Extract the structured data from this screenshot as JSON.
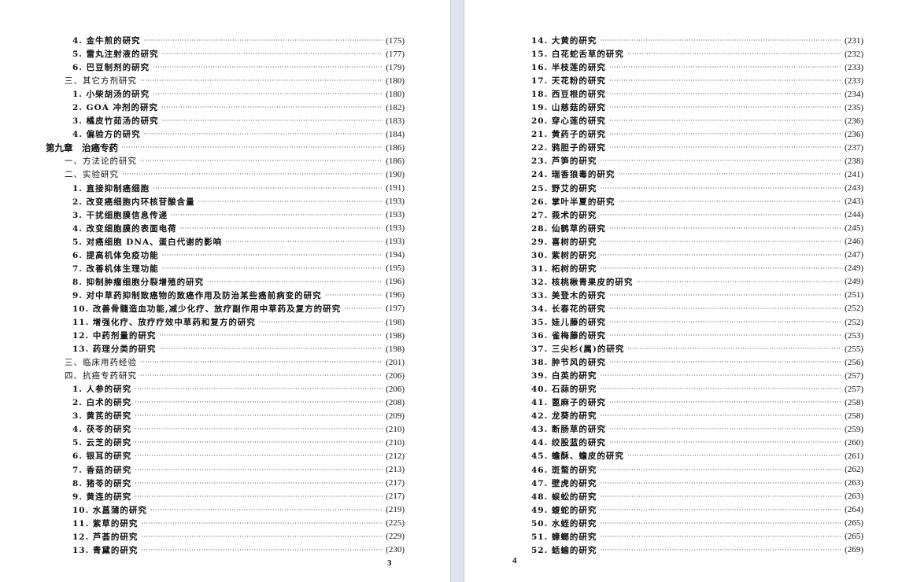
{
  "left_page": {
    "page_number": "3",
    "entries": [
      {
        "label": "4. 金牛煎的研究",
        "page": "(175)",
        "level": 2
      },
      {
        "label": "5. 雷丸注射液的研究",
        "page": "(177)",
        "level": 2
      },
      {
        "label": "6. 巴豆制剂的研究",
        "page": "(179)",
        "level": 2
      },
      {
        "label": "三、其它方剂研究",
        "page": "(180)",
        "level": 1
      },
      {
        "label": "1. 小柴胡汤的研究",
        "page": "(180)",
        "level": 2
      },
      {
        "label": "2. GOA 冲剂的研究",
        "page": "(182)",
        "level": 2
      },
      {
        "label": "3. 橘皮竹茹汤的研究",
        "page": "(183)",
        "level": 2
      },
      {
        "label": "4. 偏验方的研究",
        "page": "(184)",
        "level": 2
      },
      {
        "label": "第九章　治癌专药",
        "page": "(186)",
        "level": 0
      },
      {
        "label": "一、方法论的研究",
        "page": "(186)",
        "level": 1
      },
      {
        "label": "二、实验研究",
        "page": "(190)",
        "level": 1
      },
      {
        "label": "1. 直接抑制癌细胞",
        "page": "(191)",
        "level": 2
      },
      {
        "label": "2. 改变癌细胞内环核苷酸含量",
        "page": "(193)",
        "level": 2
      },
      {
        "label": "3. 干扰细胞膜信息传递",
        "page": "(193)",
        "level": 2
      },
      {
        "label": "4. 改变细胞膜的表面电荷",
        "page": "(193)",
        "level": 2
      },
      {
        "label": "5. 对癌细胞 DNA、蛋白代谢的影响",
        "page": "(193)",
        "level": 2
      },
      {
        "label": "6. 提高机体免疫功能",
        "page": "(194)",
        "level": 2
      },
      {
        "label": "7. 改善机体生理功能",
        "page": "(195)",
        "level": 2
      },
      {
        "label": "8. 抑制肿瘤细胞分裂增殖的研究",
        "page": "(196)",
        "level": 2
      },
      {
        "label": "9. 对中草药抑制致癌物的致癌作用及防治某些癌前病变的研究",
        "page": "(196)",
        "level": 2
      },
      {
        "label": "10. 改善骨髓造血功能,减少化疗、放疗副作用中草药及复方的研究",
        "page": "(197)",
        "level": 2
      },
      {
        "label": "11. 增强化疗、放疗疗效中草药和复方的研究",
        "page": "(198)",
        "level": 2
      },
      {
        "label": "12. 中药剂量的研究",
        "page": "(198)",
        "level": 2
      },
      {
        "label": "13. 药理分类的研究",
        "page": "(198)",
        "level": 2
      },
      {
        "label": "三、临床用药经验",
        "page": "(201)",
        "level": 1
      },
      {
        "label": "四、抗癌专药研究",
        "page": "(206)",
        "level": 1
      },
      {
        "label": "1. 人参的研究",
        "page": "(206)",
        "level": 2
      },
      {
        "label": "2. 白术的研究",
        "page": "(208)",
        "level": 2
      },
      {
        "label": "3. 黄芪的研究",
        "page": "(209)",
        "level": 2
      },
      {
        "label": "4. 茯苓的研究",
        "page": "(210)",
        "level": 2
      },
      {
        "label": "5. 云芝的研究",
        "page": "(210)",
        "level": 2
      },
      {
        "label": "6. 银耳的研究",
        "page": "(212)",
        "level": 2
      },
      {
        "label": "7. 香菇的研究",
        "page": "(213)",
        "level": 2
      },
      {
        "label": "8. 猪苓的研究",
        "page": "(217)",
        "level": 2
      },
      {
        "label": "9. 黄连的研究",
        "page": "(217)",
        "level": 2
      },
      {
        "label": "10. 水菖蒲的研究",
        "page": "(219)",
        "level": 2
      },
      {
        "label": "11. 紫草的研究",
        "page": "(225)",
        "level": 2
      },
      {
        "label": "12. 芦荟的研究",
        "page": "(229)",
        "level": 2
      },
      {
        "label": "13. 青黛的研究",
        "page": "(230)",
        "level": 2
      }
    ]
  },
  "right_page": {
    "page_number": "4",
    "entries": [
      {
        "label": "14. 大黄的研究",
        "page": "(231)",
        "level": 2
      },
      {
        "label": "15. 白花蛇舌草的研究",
        "page": "(232)",
        "level": 2
      },
      {
        "label": "16. 半枝莲的研究",
        "page": "(233)",
        "level": 2
      },
      {
        "label": "17. 天花粉的研究",
        "page": "(233)",
        "level": 2
      },
      {
        "label": "18. 西豆根的研究",
        "page": "(234)",
        "level": 2
      },
      {
        "label": "19. 山慈菇的研究",
        "page": "(235)",
        "level": 2
      },
      {
        "label": "20. 穿心莲的研究",
        "page": "(236)",
        "level": 2
      },
      {
        "label": "21. 黄药子的研究",
        "page": "(236)",
        "level": 2
      },
      {
        "label": "22. 鸦胆子的研究",
        "page": "(237)",
        "level": 2
      },
      {
        "label": "23. 芦笋的研究",
        "page": "(238)",
        "level": 2
      },
      {
        "label": "24. 瑞香狼毒的研究",
        "page": "(241)",
        "level": 2
      },
      {
        "label": "25. 野艾的研究",
        "page": "(243)",
        "level": 2
      },
      {
        "label": "26. 掌叶半夏的研究",
        "page": "(243)",
        "level": 2
      },
      {
        "label": "27. 莪术的研究",
        "page": "(244)",
        "level": 2
      },
      {
        "label": "28. 仙鹤草的研究",
        "page": "(245)",
        "level": 2
      },
      {
        "label": "29. 喜树的研究",
        "page": "(246)",
        "level": 2
      },
      {
        "label": "30. 紫树的研究",
        "page": "(247)",
        "level": 2
      },
      {
        "label": "31. 柘树的研究",
        "page": "(249)",
        "level": 2
      },
      {
        "label": "32. 核桃楸青果皮的研究",
        "page": "(249)",
        "level": 2
      },
      {
        "label": "33. 美登木的研究",
        "page": "(251)",
        "level": 2
      },
      {
        "label": "34. 长春花的研究",
        "page": "(252)",
        "level": 2
      },
      {
        "label": "35. 娃儿藤的研究",
        "page": "(252)",
        "level": 2
      },
      {
        "label": "36. 雀梅藤的研究",
        "page": "(253)",
        "level": 2
      },
      {
        "label": "37. 三尖杉(属)的研究",
        "page": "(255)",
        "level": 2
      },
      {
        "label": "38. 肿节风的研究",
        "page": "(256)",
        "level": 2
      },
      {
        "label": "39. 白英的研究",
        "page": "(257)",
        "level": 2
      },
      {
        "label": "40. 石蒜的研究",
        "page": "(257)",
        "level": 2
      },
      {
        "label": "41. 蓖麻子的研究",
        "page": "(258)",
        "level": 2
      },
      {
        "label": "42. 龙葵的研究",
        "page": "(258)",
        "level": 2
      },
      {
        "label": "43. 断肠草的研究",
        "page": "(259)",
        "level": 2
      },
      {
        "label": "44. 绞股蓝的研究",
        "page": "(260)",
        "level": 2
      },
      {
        "label": "45. 蟾酥、蟾皮的研究",
        "page": "(261)",
        "level": 2
      },
      {
        "label": "46. 斑蝥的研究",
        "page": "(262)",
        "level": 2
      },
      {
        "label": "47. 壁虎的研究",
        "page": "(263)",
        "level": 2
      },
      {
        "label": "48. 蜈蚣的研究",
        "page": "(263)",
        "level": 2
      },
      {
        "label": "49. 蝮蛇的研究",
        "page": "(264)",
        "level": 2
      },
      {
        "label": "50. 水蛭的研究",
        "page": "(265)",
        "level": 2
      },
      {
        "label": "51. 蟑螂的研究",
        "page": "(265)",
        "level": 2
      },
      {
        "label": "52. 蛞蝓的研究",
        "page": "(269)",
        "level": 2
      }
    ]
  }
}
